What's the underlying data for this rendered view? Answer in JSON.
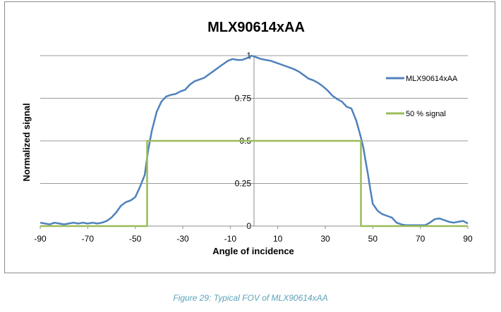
{
  "chart_data": {
    "type": "line",
    "title": "MLX90614xAA",
    "xlabel": "Angle of incidence",
    "ylabel": "Normalized signal",
    "xlim": [
      -90,
      90
    ],
    "ylim": [
      0,
      1
    ],
    "xticks": [
      "-90",
      "-70",
      "-50",
      "-30",
      "-10",
      "10",
      "30",
      "50",
      "70",
      "90"
    ],
    "xtick_values": [
      -90,
      -70,
      -50,
      -30,
      -10,
      10,
      30,
      50,
      70,
      90
    ],
    "yticks": [
      "0",
      "0.25",
      "0.5",
      "0.75",
      "1"
    ],
    "ytick_values": [
      0,
      0.25,
      0.5,
      0.75,
      1
    ],
    "grid": "horizontal",
    "legend_position": "right",
    "series": [
      {
        "name": "MLX90614xAA",
        "color": "#4f81bd",
        "points": [
          [
            -90,
            0.02
          ],
          [
            -88,
            0.015
          ],
          [
            -86,
            0.01
          ],
          [
            -84,
            0.02
          ],
          [
            -82,
            0.015
          ],
          [
            -80,
            0.01
          ],
          [
            -78,
            0.015
          ],
          [
            -76,
            0.02
          ],
          [
            -74,
            0.015
          ],
          [
            -72,
            0.02
          ],
          [
            -70,
            0.015
          ],
          [
            -68,
            0.02
          ],
          [
            -66,
            0.015
          ],
          [
            -64,
            0.02
          ],
          [
            -62,
            0.03
          ],
          [
            -60,
            0.05
          ],
          [
            -58,
            0.08
          ],
          [
            -56,
            0.12
          ],
          [
            -54,
            0.14
          ],
          [
            -52,
            0.15
          ],
          [
            -50,
            0.17
          ],
          [
            -48,
            0.23
          ],
          [
            -46,
            0.3
          ],
          [
            -44.5,
            0.45
          ],
          [
            -43,
            0.56
          ],
          [
            -41,
            0.67
          ],
          [
            -39,
            0.73
          ],
          [
            -37,
            0.76
          ],
          [
            -35,
            0.77
          ],
          [
            -33,
            0.775
          ],
          [
            -31,
            0.79
          ],
          [
            -29,
            0.8
          ],
          [
            -27,
            0.83
          ],
          [
            -25,
            0.85
          ],
          [
            -23,
            0.86
          ],
          [
            -21,
            0.87
          ],
          [
            -19,
            0.89
          ],
          [
            -17,
            0.91
          ],
          [
            -15,
            0.93
          ],
          [
            -13,
            0.95
          ],
          [
            -11,
            0.97
          ],
          [
            -9,
            0.98
          ],
          [
            -7,
            0.975
          ],
          [
            -5,
            0.975
          ],
          [
            -3,
            0.985
          ],
          [
            -1,
            1.0
          ],
          [
            1,
            0.99
          ],
          [
            3,
            0.98
          ],
          [
            5,
            0.975
          ],
          [
            7,
            0.97
          ],
          [
            9,
            0.96
          ],
          [
            11,
            0.95
          ],
          [
            13,
            0.94
          ],
          [
            15,
            0.93
          ],
          [
            17,
            0.92
          ],
          [
            19,
            0.905
          ],
          [
            21,
            0.885
          ],
          [
            23,
            0.865
          ],
          [
            25,
            0.855
          ],
          [
            27,
            0.84
          ],
          [
            29,
            0.82
          ],
          [
            31,
            0.795
          ],
          [
            33,
            0.765
          ],
          [
            35,
            0.745
          ],
          [
            37,
            0.73
          ],
          [
            39,
            0.7
          ],
          [
            41,
            0.69
          ],
          [
            43,
            0.62
          ],
          [
            45,
            0.52
          ],
          [
            46,
            0.46
          ],
          [
            47,
            0.38
          ],
          [
            48,
            0.3
          ],
          [
            49,
            0.21
          ],
          [
            50,
            0.13
          ],
          [
            51,
            0.11
          ],
          [
            52,
            0.09
          ],
          [
            54,
            0.07
          ],
          [
            56,
            0.06
          ],
          [
            58,
            0.05
          ],
          [
            60,
            0.02
          ],
          [
            62,
            0.01
          ],
          [
            64,
            0.005
          ],
          [
            66,
            0.005
          ],
          [
            68,
            0.005
          ],
          [
            70,
            0.005
          ],
          [
            72,
            0.005
          ],
          [
            74,
            0.02
          ],
          [
            76,
            0.04
          ],
          [
            78,
            0.045
          ],
          [
            80,
            0.035
          ],
          [
            82,
            0.025
          ],
          [
            84,
            0.02
          ],
          [
            86,
            0.025
          ],
          [
            88,
            0.03
          ],
          [
            90,
            0.015
          ]
        ]
      },
      {
        "name": "50 % signal",
        "color": "#9bbb59",
        "points": [
          [
            -90,
            0
          ],
          [
            -45,
            0
          ],
          [
            -45,
            0.5
          ],
          [
            45,
            0.5
          ],
          [
            45,
            0
          ],
          [
            90,
            0
          ]
        ]
      }
    ]
  },
  "caption": "Figure 29: Typical FOV of MLX90614xAA"
}
